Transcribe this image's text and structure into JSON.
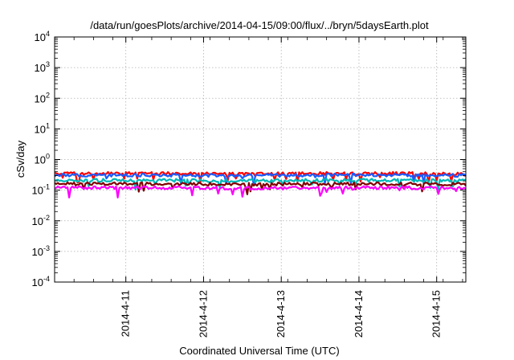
{
  "chart_data": {
    "type": "line",
    "title": "/data/run/goesPlots/archive/2014-04-15/09:00/flux/../bryn/5daysEarth.plot",
    "xlabel": "Coordinated Universal Time (UTC)",
    "ylabel": "cSv/day",
    "yscale": "log",
    "ylim": [
      0.0001,
      10000
    ],
    "xlim": [
      "2014-04-10 02:00",
      "2014-04-15 09:00"
    ],
    "grid": true,
    "y_ticks": [
      {
        "base": "10",
        "exp": "4"
      },
      {
        "base": "10",
        "exp": "3"
      },
      {
        "base": "10",
        "exp": "2"
      },
      {
        "base": "10",
        "exp": "1"
      },
      {
        "base": "10",
        "exp": "0"
      },
      {
        "base": "10",
        "exp": "-1"
      },
      {
        "base": "10",
        "exp": "-2"
      },
      {
        "base": "10",
        "exp": "-3"
      },
      {
        "base": "10",
        "exp": "-4"
      }
    ],
    "x_ticks": [
      {
        "label": "2014-4-11",
        "date": "2014-04-11"
      },
      {
        "label": "2014-4-12",
        "date": "2014-04-12"
      },
      {
        "label": "2014-4-13",
        "date": "2014-04-13"
      },
      {
        "label": "2014-4-14",
        "date": "2014-04-14"
      },
      {
        "label": "2014-4-15",
        "date": "2014-04-15"
      }
    ],
    "series": [
      {
        "color": "#ff0000",
        "values_by_day": [
          [
            "2014-04-10",
            0.35
          ],
          [
            "2014-04-11",
            0.35
          ],
          [
            "2014-04-12",
            0.34
          ],
          [
            "2014-04-13",
            0.35
          ],
          [
            "2014-04-14",
            0.35
          ],
          [
            "2014-04-15",
            0.34
          ]
        ]
      },
      {
        "color": "#1a5cff",
        "values_by_day": [
          [
            "2014-04-10",
            0.31
          ],
          [
            "2014-04-11",
            0.31
          ],
          [
            "2014-04-12",
            0.3
          ],
          [
            "2014-04-13",
            0.31
          ],
          [
            "2014-04-14",
            0.31
          ],
          [
            "2014-04-15",
            0.3
          ]
        ]
      },
      {
        "color": "#00b8b8",
        "values_by_day": [
          [
            "2014-04-10",
            0.21
          ],
          [
            "2014-04-11",
            0.21
          ],
          [
            "2014-04-12",
            0.2
          ],
          [
            "2014-04-13",
            0.21
          ],
          [
            "2014-04-14",
            0.21
          ],
          [
            "2014-04-15",
            0.2
          ]
        ]
      },
      {
        "color": "#800000",
        "values_by_day": [
          [
            "2014-04-10",
            0.16
          ],
          [
            "2014-04-11",
            0.16
          ],
          [
            "2014-04-12",
            0.155
          ],
          [
            "2014-04-13",
            0.16
          ],
          [
            "2014-04-14",
            0.16
          ],
          [
            "2014-04-15",
            0.155
          ]
        ]
      },
      {
        "color": "#ff00ff",
        "values_by_day": [
          [
            "2014-04-10",
            0.12
          ],
          [
            "2014-04-11",
            0.12
          ],
          [
            "2014-04-12",
            0.115
          ],
          [
            "2014-04-13",
            0.12
          ],
          [
            "2014-04-14",
            0.12
          ],
          [
            "2014-04-15",
            0.115
          ]
        ]
      }
    ]
  }
}
